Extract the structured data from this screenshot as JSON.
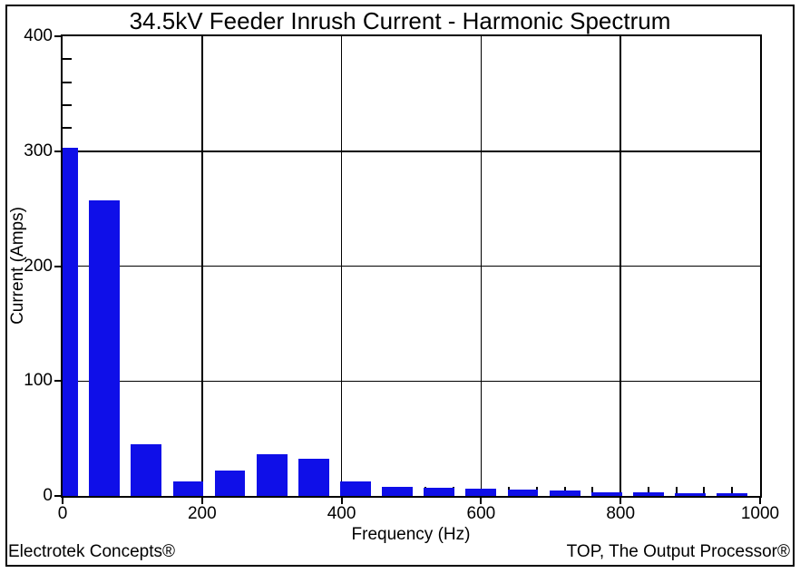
{
  "footer": {
    "left": "Electrotek Concepts®",
    "right": "TOP, The Output Processor®"
  },
  "chart_data": {
    "type": "bar",
    "title": "34.5kV Feeder Inrush Current - Harmonic Spectrum",
    "xlabel": "Frequency (Hz)",
    "ylabel": "Current (Amps)",
    "x": [
      0,
      60,
      120,
      180,
      240,
      300,
      360,
      420,
      480,
      540,
      600,
      660,
      720,
      780,
      840,
      900,
      960
    ],
    "values": [
      303,
      257,
      45,
      13,
      22,
      36,
      32,
      12.5,
      7.5,
      7,
      6.3,
      5.3,
      4.7,
      3.4,
      2.9,
      2.6,
      2.4
    ],
    "xlim": [
      0,
      1000
    ],
    "ylim": [
      0,
      400
    ],
    "x_major_ticks": [
      0,
      200,
      400,
      600,
      800,
      1000
    ],
    "y_major_ticks": [
      0,
      100,
      200,
      300,
      400
    ],
    "x_minor_step": 40,
    "y_minor_step": 20,
    "bar_width_hz": 44,
    "bar_color": "#0f0fe8",
    "grid": true,
    "legend_position": "none",
    "axis_color": "#000000"
  }
}
